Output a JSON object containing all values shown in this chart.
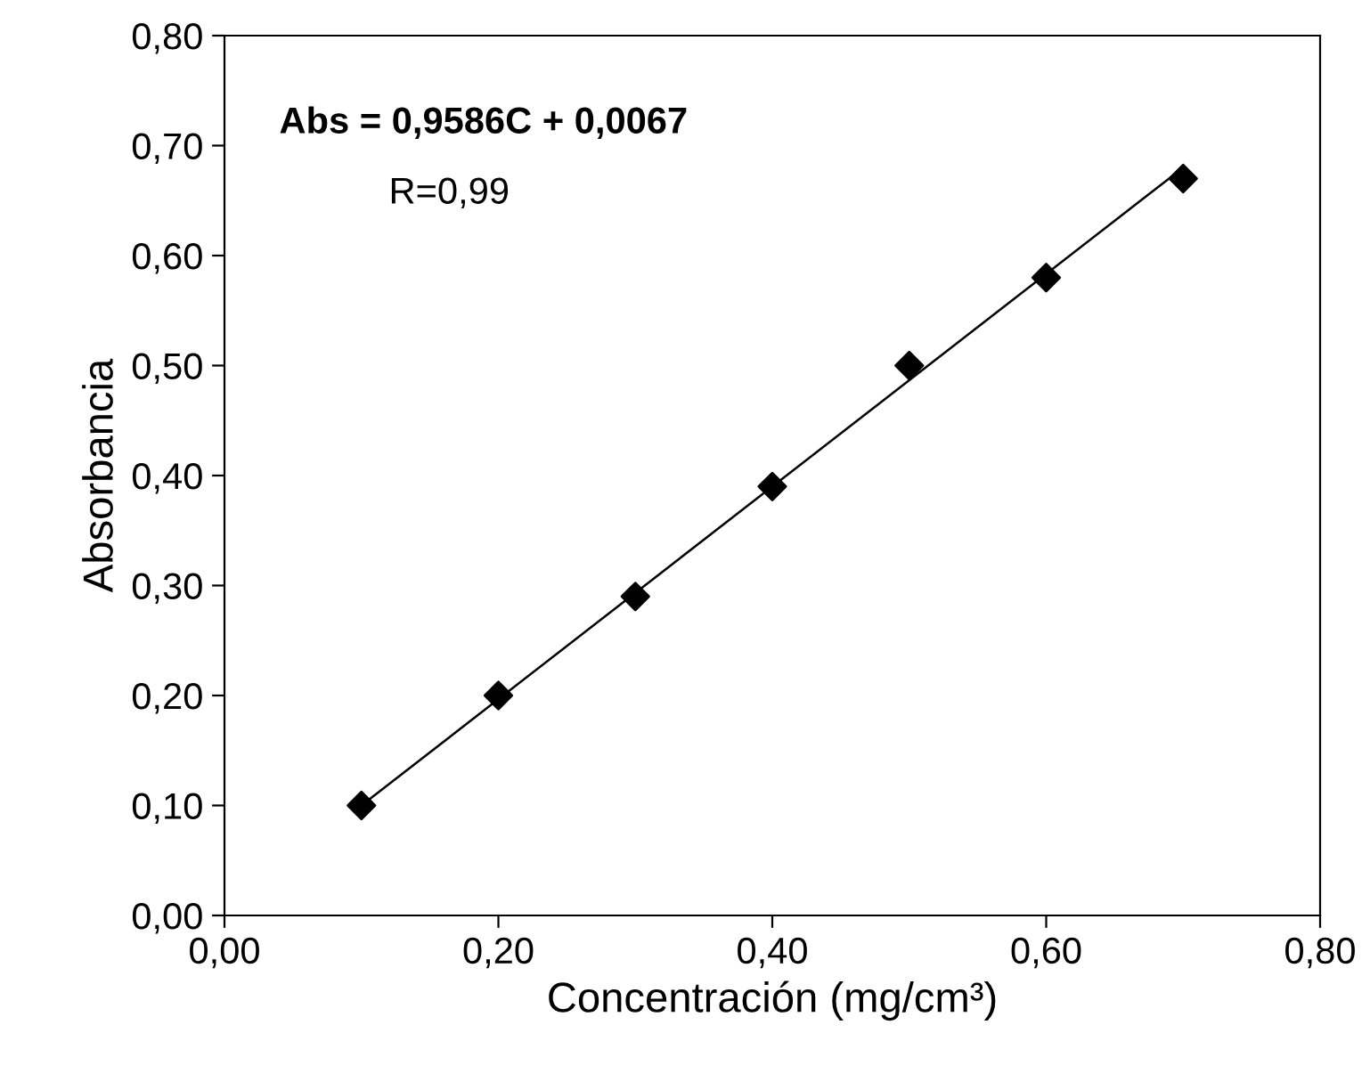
{
  "chart_data": {
    "type": "scatter",
    "xlabel": "Concentración (mg/cm³)",
    "ylabel": "Absorbancia",
    "annotations": [
      "Abs = 0,9586C + 0,0067",
      "R=0,99"
    ],
    "series": [
      {
        "color": "#000000",
        "marker": "diamond",
        "x": [
          0.1,
          0.2,
          0.3,
          0.4,
          0.5,
          0.6,
          0.7
        ],
        "values": [
          0.1,
          0.2,
          0.29,
          0.39,
          0.5,
          0.58,
          0.67
        ]
      },
      {
        "type": "line",
        "color": "#000000",
        "marker": "none",
        "line_style": "solid",
        "x": [
          0.1,
          0.7
        ],
        "values": [
          0.1,
          0.68
        ]
      }
    ],
    "xlim": [
      0,
      0.8
    ],
    "ylim": [
      0,
      0.8
    ],
    "xticks": [
      {
        "value": 0,
        "label": "0,00"
      },
      {
        "value": 0.2,
        "label": "0,20"
      },
      {
        "value": 0.4,
        "label": "0,40"
      },
      {
        "value": 0.6,
        "label": "0,60"
      },
      {
        "value": 0.8,
        "label": "0,80"
      }
    ],
    "yticks": [
      {
        "value": 0,
        "label": "0,00"
      },
      {
        "value": 0.1,
        "label": "0,10"
      },
      {
        "value": 0.2,
        "label": "0,20"
      },
      {
        "value": 0.3,
        "label": "0,30"
      },
      {
        "value": 0.4,
        "label": "0,40"
      },
      {
        "value": 0.5,
        "label": "0,50"
      },
      {
        "value": 0.6,
        "label": "0,60"
      },
      {
        "value": 0.7,
        "label": "0,70"
      },
      {
        "value": 0.8,
        "label": "0,80"
      }
    ],
    "grid": false,
    "legend": false
  }
}
